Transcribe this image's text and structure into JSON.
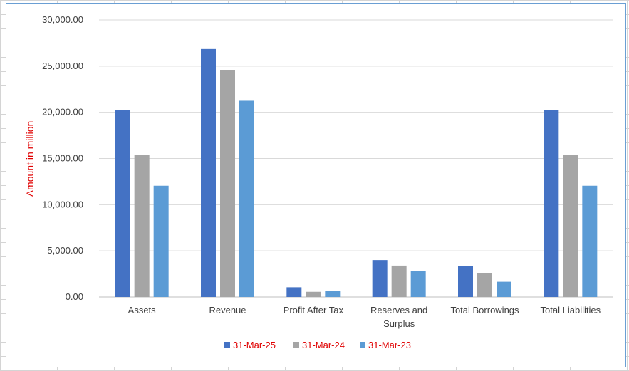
{
  "chart_data": {
    "type": "bar",
    "title": "",
    "xlabel": "",
    "ylabel": "Amount in million",
    "ylim": [
      0,
      30000
    ],
    "yticks": [
      "0.00",
      "5,000.00",
      "10,000.00",
      "15,000.00",
      "20,000.00",
      "25,000.00",
      "30,000.00"
    ],
    "grid": true,
    "legend_position": "bottom",
    "categories": [
      [
        "Assets"
      ],
      [
        "Revenue"
      ],
      [
        "Profit After Tax"
      ],
      [
        "Reserves and",
        "Surplus"
      ],
      [
        "Total Borrowings"
      ],
      [
        "Total Liabilities"
      ]
    ],
    "series": [
      {
        "name": "31-Mar-25",
        "color": "#4472c4",
        "values": [
          20250,
          26850,
          1050,
          4000,
          3350,
          20250
        ]
      },
      {
        "name": "31-Mar-24",
        "color": "#a5a5a5",
        "values": [
          15400,
          24550,
          560,
          3400,
          2600,
          15400
        ]
      },
      {
        "name": "31-Mar-23",
        "color": "#5b9bd5",
        "values": [
          12050,
          21250,
          620,
          2800,
          1650,
          12050
        ]
      }
    ]
  }
}
